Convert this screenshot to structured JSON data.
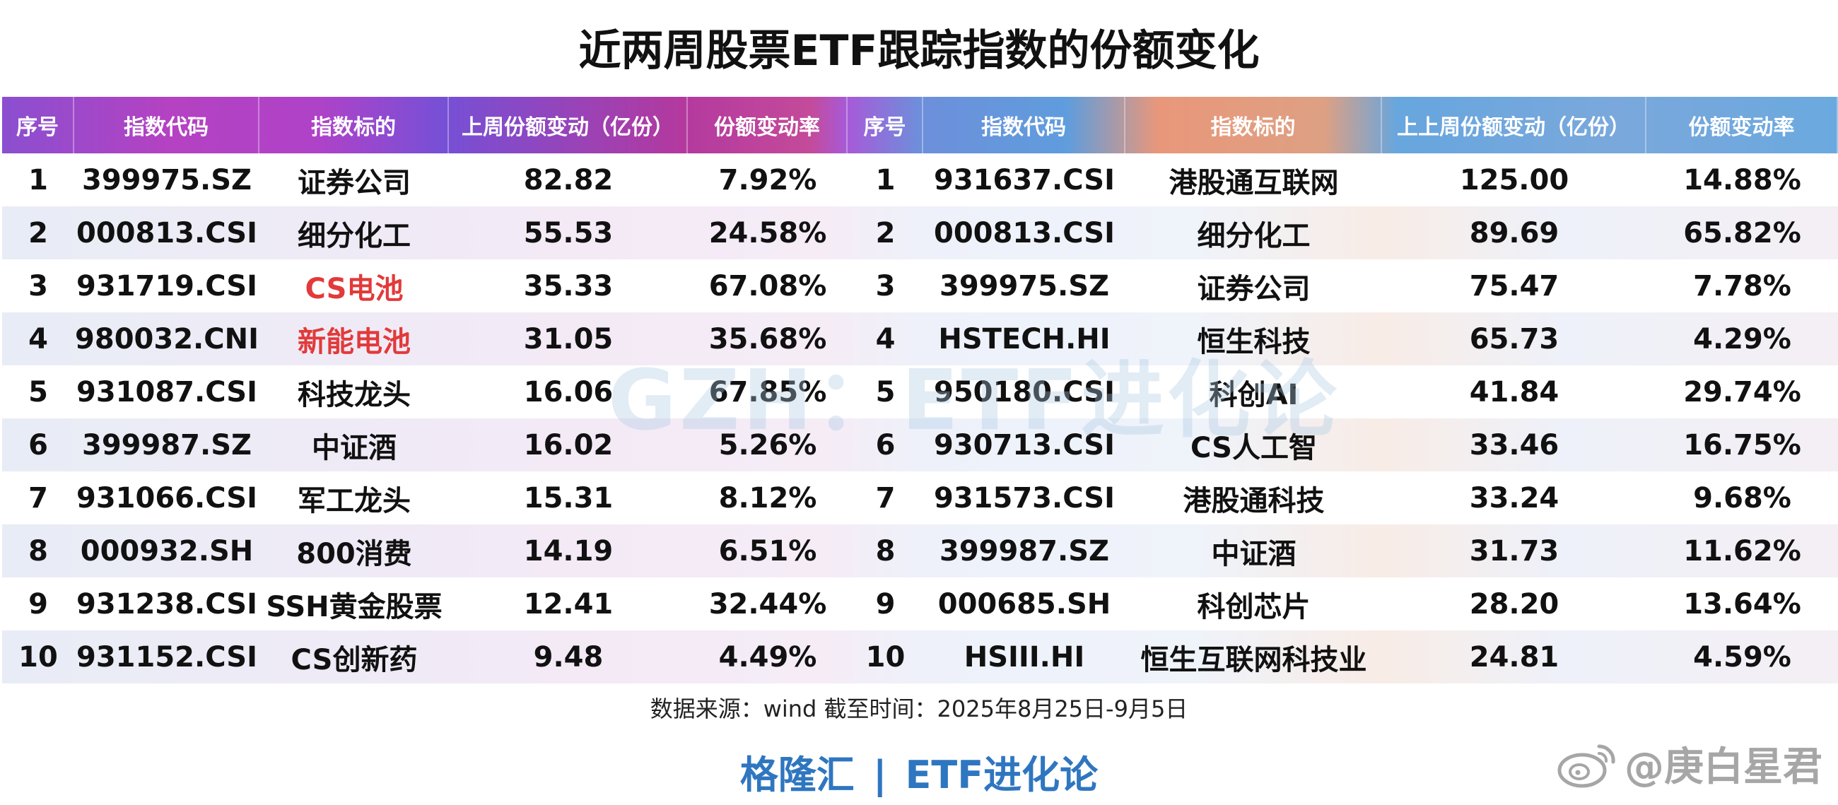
{
  "title": "近两周股票ETF跟踪指数的份额变化",
  "headers": [
    "序号",
    "指数代码",
    "指数标的",
    "上周份额变动（亿份）",
    "份额变动率",
    "序号",
    "指数代码",
    "指数标的",
    "上上周份额变动（亿份）",
    "份额变动率"
  ],
  "rows": [
    {
      "l_no": "1",
      "l_code": "399975.SZ",
      "l_name": "证券公司",
      "l_change": "82.82",
      "l_rate": "7.92%",
      "r_no": "1",
      "r_code": "931637.CSI",
      "r_name": "港股通互联网",
      "r_change": "125.00",
      "r_rate": "14.88%"
    },
    {
      "l_no": "2",
      "l_code": "000813.CSI",
      "l_name": "细分化工",
      "l_change": "55.53",
      "l_rate": "24.58%",
      "r_no": "2",
      "r_code": "000813.CSI",
      "r_name": "细分化工",
      "r_change": "89.69",
      "r_rate": "65.82%"
    },
    {
      "l_no": "3",
      "l_code": "931719.CSI",
      "l_name": "CS电池",
      "l_change": "35.33",
      "l_rate": "67.08%",
      "r_no": "3",
      "r_code": "399975.SZ",
      "r_name": "证券公司",
      "r_change": "75.47",
      "r_rate": "7.78%"
    },
    {
      "l_no": "4",
      "l_code": "980032.CNI",
      "l_name": "新能电池",
      "l_change": "31.05",
      "l_rate": "35.68%",
      "r_no": "4",
      "r_code": "HSTECH.HI",
      "r_name": "恒生科技",
      "r_change": "65.73",
      "r_rate": "4.29%"
    },
    {
      "l_no": "5",
      "l_code": "931087.CSI",
      "l_name": "科技龙头",
      "l_change": "16.06",
      "l_rate": "67.85%",
      "r_no": "5",
      "r_code": "950180.CSI",
      "r_name": "科创AI",
      "r_change": "41.84",
      "r_rate": "29.74%"
    },
    {
      "l_no": "6",
      "l_code": "399987.SZ",
      "l_name": "中证酒",
      "l_change": "16.02",
      "l_rate": "5.26%",
      "r_no": "6",
      "r_code": "930713.CSI",
      "r_name": "CS人工智",
      "r_change": "33.46",
      "r_rate": "16.75%"
    },
    {
      "l_no": "7",
      "l_code": "931066.CSI",
      "l_name": "军工龙头",
      "l_change": "15.31",
      "l_rate": "8.12%",
      "r_no": "7",
      "r_code": "931573.CSI",
      "r_name": "港股通科技",
      "r_change": "33.24",
      "r_rate": "9.68%"
    },
    {
      "l_no": "8",
      "l_code": "000932.SH",
      "l_name": "800消费",
      "l_change": "14.19",
      "l_rate": "6.51%",
      "r_no": "8",
      "r_code": "399987.SZ",
      "r_name": "中证酒",
      "r_change": "31.73",
      "r_rate": "11.62%"
    },
    {
      "l_no": "9",
      "l_code": "931238.CSI",
      "l_name": "SSH黄金股票",
      "l_change": "12.41",
      "l_rate": "32.44%",
      "r_no": "9",
      "r_code": "000685.SH",
      "r_name": "科创芯片",
      "r_change": "28.20",
      "r_rate": "13.64%"
    },
    {
      "l_no": "10",
      "l_code": "931152.CSI",
      "l_name": "CS创新药",
      "l_change": "9.48",
      "l_rate": "4.49%",
      "r_no": "10",
      "r_code": "HSIII.HI",
      "r_name": "恒生互联网科技业",
      "r_change": "24.81",
      "r_rate": "4.59%"
    }
  ],
  "highlight_color": "#e23a3a",
  "watermark": "GZH：ETF进化论",
  "source": "数据来源：wind 截至时间：2025年8月25日-9月5日",
  "footer": {
    "left": "格隆汇",
    "sep": "|",
    "right": "ETF进化论"
  },
  "weibo": {
    "icon": "weibo-icon",
    "handle": "@庚白星君"
  }
}
